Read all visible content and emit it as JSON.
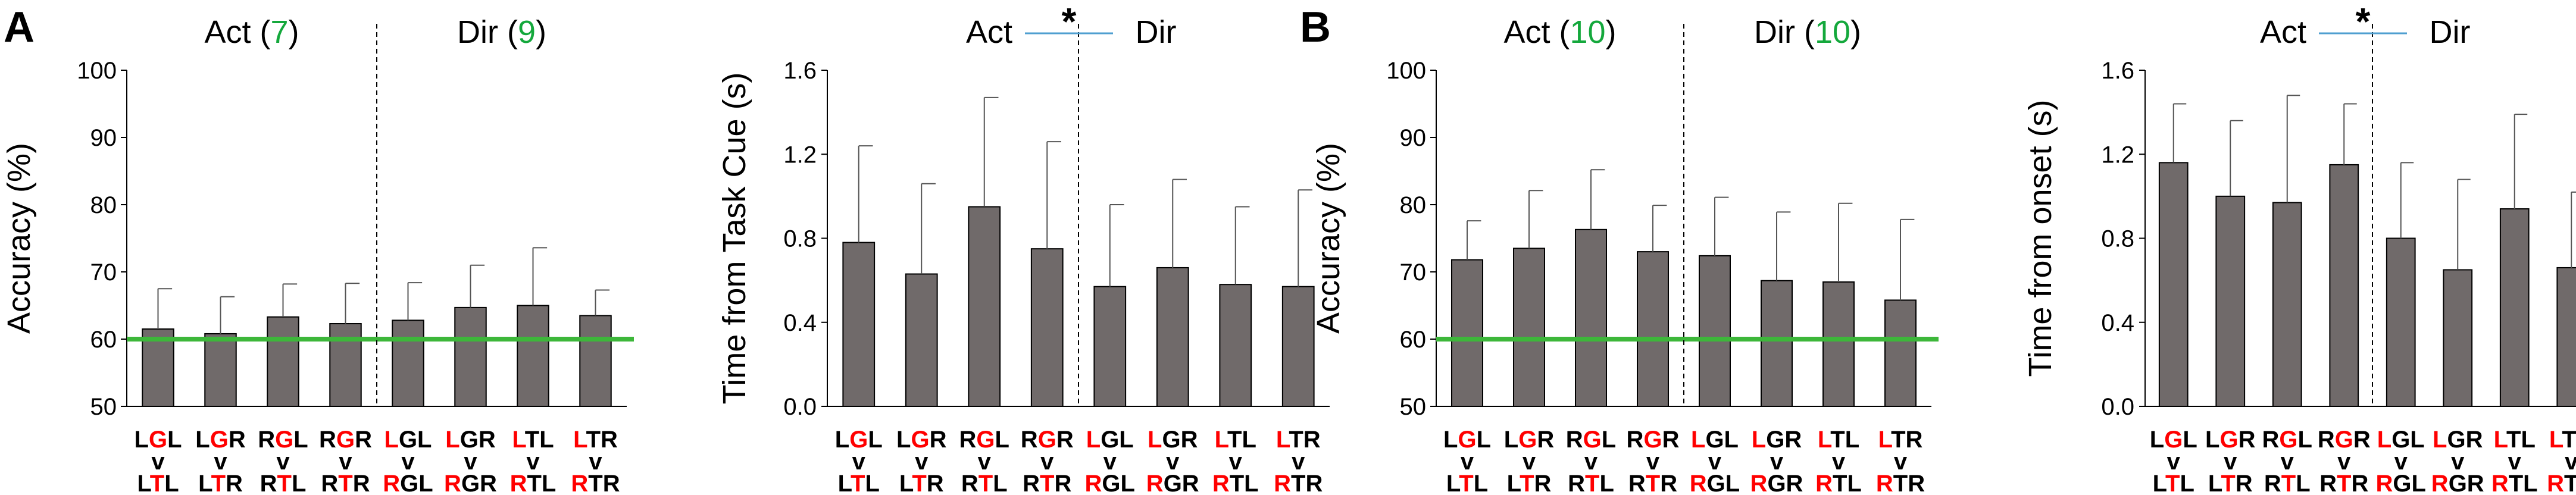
{
  "panel_labels": [
    "A",
    "B"
  ],
  "condition_labels": [
    [
      {
        "t": "L",
        "c": "k"
      },
      {
        "t": "G",
        "c": "r"
      },
      {
        "t": "L",
        "c": "k"
      },
      {
        "t": "\n"
      },
      {
        "t": "v",
        "c": "k"
      },
      {
        "t": "\n"
      },
      {
        "t": "L",
        "c": "k"
      },
      {
        "t": "T",
        "c": "r"
      },
      {
        "t": "L",
        "c": "k"
      }
    ],
    [
      {
        "t": "L",
        "c": "k"
      },
      {
        "t": "G",
        "c": "r"
      },
      {
        "t": "R",
        "c": "k"
      },
      {
        "t": "\n"
      },
      {
        "t": "v",
        "c": "k"
      },
      {
        "t": "\n"
      },
      {
        "t": "L",
        "c": "k"
      },
      {
        "t": "T",
        "c": "r"
      },
      {
        "t": "R",
        "c": "k"
      }
    ],
    [
      {
        "t": "R",
        "c": "k"
      },
      {
        "t": "G",
        "c": "r"
      },
      {
        "t": "L",
        "c": "k"
      },
      {
        "t": "\n"
      },
      {
        "t": "v",
        "c": "k"
      },
      {
        "t": "\n"
      },
      {
        "t": "R",
        "c": "k"
      },
      {
        "t": "T",
        "c": "r"
      },
      {
        "t": "L",
        "c": "k"
      }
    ],
    [
      {
        "t": "R",
        "c": "k"
      },
      {
        "t": "G",
        "c": "r"
      },
      {
        "t": "R",
        "c": "k"
      },
      {
        "t": "\n"
      },
      {
        "t": "v",
        "c": "k"
      },
      {
        "t": "\n"
      },
      {
        "t": "R",
        "c": "k"
      },
      {
        "t": "T",
        "c": "r"
      },
      {
        "t": "R",
        "c": "k"
      }
    ],
    [
      {
        "t": "L",
        "c": "r"
      },
      {
        "t": "GL",
        "c": "k"
      },
      {
        "t": "\n"
      },
      {
        "t": "v",
        "c": "k"
      },
      {
        "t": "\n"
      },
      {
        "t": "R",
        "c": "r"
      },
      {
        "t": "GL",
        "c": "k"
      }
    ],
    [
      {
        "t": "L",
        "c": "r"
      },
      {
        "t": "GR",
        "c": "k"
      },
      {
        "t": "\n"
      },
      {
        "t": "v",
        "c": "k"
      },
      {
        "t": "\n"
      },
      {
        "t": "R",
        "c": "r"
      },
      {
        "t": "GR",
        "c": "k"
      }
    ],
    [
      {
        "t": "L",
        "c": "r"
      },
      {
        "t": "TL",
        "c": "k"
      },
      {
        "t": "\n"
      },
      {
        "t": "v",
        "c": "k"
      },
      {
        "t": "\n"
      },
      {
        "t": "R",
        "c": "r"
      },
      {
        "t": "TL",
        "c": "k"
      }
    ],
    [
      {
        "t": "L",
        "c": "r"
      },
      {
        "t": "TR",
        "c": "k"
      },
      {
        "t": "\n"
      },
      {
        "t": "v",
        "c": "k"
      },
      {
        "t": "\n"
      },
      {
        "t": "R",
        "c": "r"
      },
      {
        "t": "TR",
        "c": "k"
      }
    ]
  ],
  "colors": {
    "bar": "#706a6a",
    "chance_line": "#3db73a",
    "group_count": "#14a83c",
    "condition_red": "#ff0000",
    "sig_line": "#4f9fd0"
  },
  "chart_data": [
    {
      "type": "bar",
      "panel": "A",
      "ylabel": "Accuracy  (%)",
      "ylim": [
        50,
        100
      ],
      "yticks": [
        "50",
        "60",
        "70",
        "80",
        "90",
        "100"
      ],
      "groups": [
        {
          "name": "Act",
          "count": "7"
        },
        {
          "name": "Dir",
          "count": "9"
        }
      ],
      "chance_level": 60,
      "values": [
        61.5,
        60.8,
        63.3,
        62.3,
        62.8,
        64.7,
        65.0,
        63.5
      ],
      "errors": [
        6.0,
        5.5,
        4.9,
        6.0,
        5.6,
        6.3,
        8.6,
        3.8
      ]
    },
    {
      "type": "bar",
      "panel": "A",
      "ylabel": "Time from Task Cue (s)",
      "ylim": [
        0,
        1.6
      ],
      "yticks": [
        "0.0",
        "0.4",
        "0.8",
        "1.2",
        "1.6"
      ],
      "groups": [
        {
          "name": "Act"
        },
        {
          "name": "Dir"
        }
      ],
      "significance": "*",
      "values": [
        0.78,
        0.63,
        0.95,
        0.75,
        0.57,
        0.66,
        0.58,
        0.57
      ],
      "errors": [
        0.46,
        0.43,
        0.52,
        0.51,
        0.39,
        0.42,
        0.37,
        0.46
      ]
    },
    {
      "type": "bar",
      "panel": "B",
      "ylabel": "Accuracy (%)",
      "ylim": [
        50,
        100
      ],
      "yticks": [
        "50",
        "60",
        "70",
        "80",
        "90",
        "100"
      ],
      "groups": [
        {
          "name": "Act",
          "count": "10"
        },
        {
          "name": "Dir",
          "count": "10"
        }
      ],
      "chance_level": 60,
      "values": [
        71.8,
        73.5,
        76.3,
        73.0,
        72.4,
        68.7,
        68.5,
        65.8
      ],
      "errors": [
        5.8,
        8.6,
        8.9,
        6.9,
        8.7,
        10.2,
        11.7,
        12.0
      ]
    },
    {
      "type": "bar",
      "panel": "B",
      "ylabel": "Time from onset (s)",
      "ylim": [
        0,
        1.6
      ],
      "yticks": [
        "0.0",
        "0.4",
        "0.8",
        "1.2",
        "1.6"
      ],
      "groups": [
        {
          "name": "Act"
        },
        {
          "name": "Dir"
        }
      ],
      "significance": "*",
      "values": [
        1.16,
        1.0,
        0.97,
        1.15,
        0.8,
        0.65,
        0.94,
        0.66
      ],
      "errors": [
        0.28,
        0.36,
        0.51,
        0.29,
        0.36,
        0.43,
        0.45,
        0.36
      ]
    }
  ]
}
